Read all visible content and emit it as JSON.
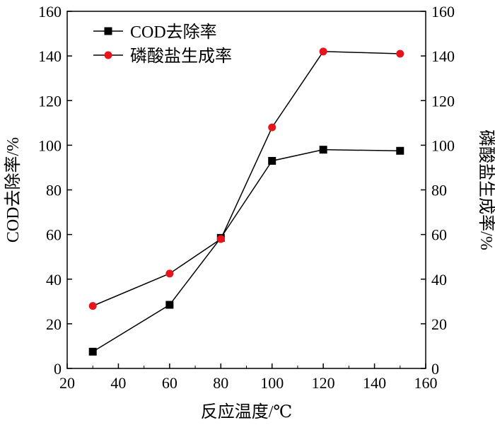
{
  "chart_data": {
    "type": "line",
    "xlabel": "反应温度/℃",
    "ylabel_left": "COD去除率/%",
    "ylabel_right": "磷酸盐生成率/%",
    "xlim": [
      20,
      160
    ],
    "ylim": [
      0,
      160
    ],
    "x_ticks": [
      20,
      40,
      60,
      80,
      100,
      120,
      140,
      160
    ],
    "y_ticks": [
      0,
      20,
      40,
      60,
      80,
      100,
      120,
      140,
      160
    ],
    "legend_position": "top-left",
    "grid": false,
    "series": [
      {
        "name": "COD去除率",
        "axis": "left",
        "marker": "square",
        "marker_color": "#000000",
        "line_color": "#000000",
        "x": [
          30,
          60,
          80,
          100,
          120,
          150
        ],
        "y": [
          7.5,
          28.5,
          58.5,
          93,
          98,
          97.5
        ]
      },
      {
        "name": "磷酸盐生成率",
        "axis": "right",
        "marker": "circle",
        "marker_color": "#e8141b",
        "line_color": "#000000",
        "x": [
          30,
          60,
          80,
          100,
          120,
          150
        ],
        "y": [
          28,
          42.5,
          58,
          108,
          142,
          141
        ]
      }
    ]
  }
}
